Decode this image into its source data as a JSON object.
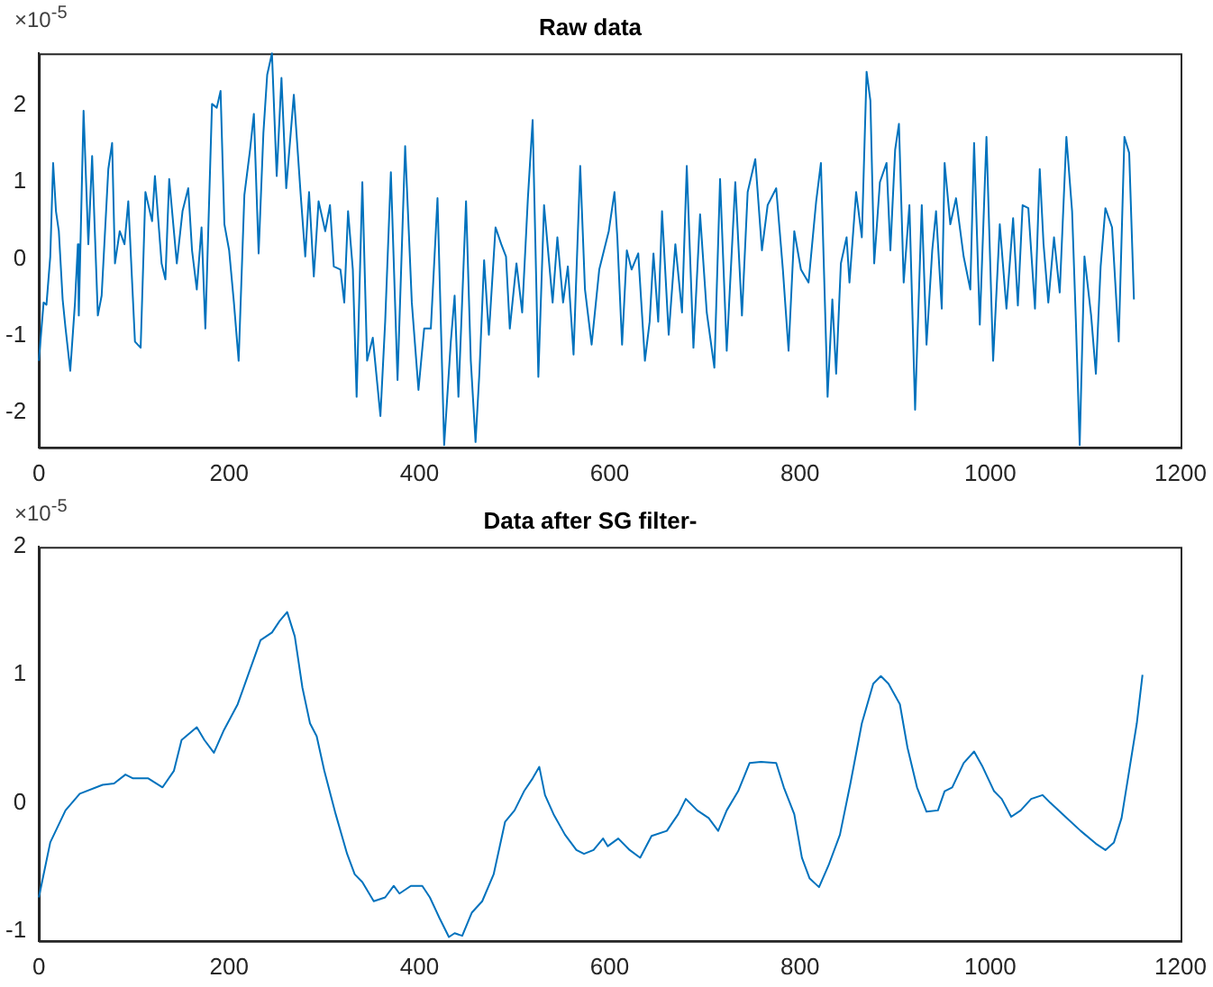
{
  "chart_data": [
    {
      "type": "line",
      "title": "Raw data",
      "annotations": [
        "×10$^{-5}$"
      ],
      "grid": false,
      "legend": false,
      "marker": "none",
      "line_style": "solid",
      "xlim": [
        0,
        1200
      ],
      "xticks": [
        0,
        200,
        400,
        600,
        800,
        1000,
        1200
      ],
      "ylim": [
        -2.46,
        2.68
      ],
      "yticks": [
        -2,
        -1,
        0,
        1,
        2
      ],
      "series": [
        {
          "color": "#0072bd",
          "x": [
            0,
            5,
            8,
            12,
            15,
            18,
            21,
            25,
            28,
            33,
            38,
            41,
            42,
            47,
            52,
            56,
            62,
            66,
            73,
            77,
            80,
            85,
            90,
            94,
            101,
            107,
            112,
            119,
            122,
            129,
            133,
            137,
            145,
            151,
            157,
            161,
            166,
            171,
            175,
            182,
            187,
            191,
            195,
            200,
            205,
            210,
            216,
            222,
            226,
            231,
            236,
            240,
            245,
            250,
            255,
            260,
            268,
            275,
            280,
            284,
            289,
            294,
            301,
            306,
            310,
            317,
            321,
            325,
            330,
            334,
            340,
            345,
            351,
            359,
            364,
            370,
            377,
            385,
            392,
            399,
            405,
            412,
            419,
            426,
            433,
            437,
            441,
            449,
            454,
            459,
            463,
            468,
            473,
            480,
            486,
            491,
            495,
            502,
            508,
            514,
            519,
            525,
            531,
            540,
            545,
            551,
            556,
            562,
            569,
            574,
            581,
            589,
            599,
            605,
            608,
            613,
            618,
            623,
            630,
            637,
            642,
            646,
            651,
            655,
            662,
            669,
            676,
            681,
            688,
            695,
            702,
            710,
            716,
            723,
            732,
            739,
            745,
            753,
            760,
            766,
            775,
            782,
            788,
            794,
            801,
            809,
            817,
            822,
            829,
            834,
            838,
            843,
            849,
            852,
            859,
            865,
            870,
            874,
            878,
            884,
            891,
            895,
            900,
            904,
            909,
            915,
            921,
            928,
            933,
            939,
            943,
            949,
            952,
            958,
            964,
            972,
            979,
            983,
            989,
            996,
            1003,
            1010,
            1017,
            1024,
            1029,
            1034,
            1040,
            1047,
            1052,
            1056,
            1061,
            1067,
            1073,
            1080,
            1086,
            1090,
            1094,
            1099,
            1106,
            1111,
            1116,
            1121,
            1128,
            1135,
            1141,
            1146,
            1151
          ],
          "values": [
            -1.33,
            -0.57,
            -0.6,
            0.03,
            1.25,
            0.62,
            0.36,
            -0.53,
            -0.9,
            -1.46,
            -0.57,
            0.19,
            -0.74,
            1.93,
            0.19,
            1.34,
            -0.74,
            -0.48,
            1.17,
            1.51,
            -0.06,
            0.36,
            0.19,
            0.75,
            -1.08,
            -1.16,
            0.87,
            0.49,
            1.08,
            -0.06,
            -0.27,
            1.04,
            -0.06,
            0.62,
            0.92,
            0.11,
            -0.4,
            0.41,
            -0.91,
            2.02,
            1.97,
            2.19,
            0.45,
            0.11,
            -0.57,
            -1.33,
            0.83,
            1.42,
            1.89,
            0.07,
            1.64,
            2.4,
            2.68,
            1.08,
            2.36,
            0.92,
            2.14,
            0.87,
            0.03,
            0.87,
            -0.23,
            0.75,
            0.36,
            0.7,
            -0.1,
            -0.14,
            -0.57,
            0.62,
            -0.14,
            -1.8,
            1.0,
            -1.33,
            -1.03,
            -2.05,
            -0.82,
            1.13,
            -1.58,
            1.47,
            -0.57,
            -1.71,
            -0.91,
            -0.91,
            0.79,
            -2.43,
            -1.08,
            -0.48,
            -1.8,
            0.75,
            -1.33,
            -2.39,
            -1.5,
            -0.02,
            -0.99,
            0.41,
            0.19,
            0.03,
            -0.91,
            -0.06,
            -0.7,
            0.79,
            1.81,
            -1.54,
            0.7,
            -0.57,
            0.28,
            -0.57,
            -0.1,
            -1.25,
            1.21,
            -0.4,
            -1.12,
            -0.14,
            0.36,
            0.87,
            0.28,
            -1.12,
            0.11,
            -0.14,
            0.07,
            -1.33,
            -0.82,
            0.07,
            -0.82,
            0.62,
            -0.99,
            0.19,
            -0.7,
            1.21,
            -1.16,
            0.58,
            -0.7,
            -1.42,
            1.04,
            -1.2,
            1.0,
            -0.74,
            0.87,
            1.3,
            0.11,
            0.7,
            0.92,
            -0.14,
            -1.2,
            0.36,
            -0.14,
            -0.31,
            0.75,
            1.25,
            -1.8,
            -0.53,
            -1.5,
            -0.06,
            0.28,
            -0.31,
            0.87,
            0.28,
            2.44,
            2.06,
            -0.06,
            1.0,
            1.25,
            0.11,
            1.42,
            1.76,
            -0.31,
            0.7,
            -1.97,
            0.7,
            -1.12,
            0.11,
            0.62,
            -0.65,
            1.25,
            0.45,
            0.79,
            0.03,
            -0.4,
            1.51,
            -0.86,
            1.59,
            -1.33,
            0.45,
            -0.65,
            0.53,
            -0.61,
            0.7,
            0.66,
            -0.65,
            1.17,
            0.19,
            -0.57,
            0.28,
            -0.44,
            1.59,
            0.62,
            -0.82,
            -2.43,
            0.03,
            -0.74,
            -1.5,
            -0.1,
            0.66,
            0.41,
            -1.08,
            1.59,
            1.38,
            -0.53
          ]
        }
      ]
    },
    {
      "type": "line",
      "title": "Data after SG filter-",
      "annotations": [
        "×10$^{-5}$"
      ],
      "grid": false,
      "legend": false,
      "marker": "none",
      "line_style": "solid",
      "xlim": [
        0,
        1200
      ],
      "xticks": [
        0,
        200,
        400,
        600,
        800,
        1000,
        1200
      ],
      "ylim": [
        -1.08,
        2
      ],
      "yticks": [
        -1,
        0,
        1,
        2
      ],
      "series": [
        {
          "color": "#0072bd",
          "x": [
            0,
            12,
            28,
            43,
            67,
            79,
            91,
            99,
            115,
            130,
            142,
            150,
            166,
            174,
            184,
            194,
            209,
            221,
            233,
            245,
            253,
            261,
            269,
            277,
            285,
            292,
            300,
            312,
            324,
            332,
            340,
            352,
            364,
            373,
            379,
            391,
            403,
            411,
            421,
            431,
            437,
            445,
            455,
            466,
            478,
            490,
            500,
            510,
            519,
            526,
            532,
            541,
            553,
            565,
            573,
            583,
            593,
            598,
            609,
            621,
            632,
            644,
            660,
            672,
            680,
            692,
            704,
            714,
            723,
            735,
            747,
            759,
            775,
            783,
            794,
            802,
            810,
            820,
            830,
            842,
            853,
            865,
            877,
            885,
            893,
            905,
            913,
            923,
            933,
            945,
            952,
            960,
            972,
            983,
            992,
            1004,
            1012,
            1022,
            1032,
            1043,
            1055,
            1063,
            1079,
            1095,
            1111,
            1121,
            1130,
            1138,
            1146,
            1154,
            1160
          ],
          "values": [
            -0.74,
            -0.31,
            -0.06,
            0.07,
            0.14,
            0.15,
            0.22,
            0.19,
            0.19,
            0.12,
            0.25,
            0.49,
            0.59,
            0.49,
            0.39,
            0.56,
            0.77,
            1.02,
            1.27,
            1.33,
            1.42,
            1.49,
            1.3,
            0.9,
            0.62,
            0.52,
            0.25,
            -0.09,
            -0.4,
            -0.56,
            -0.62,
            -0.77,
            -0.74,
            -0.65,
            -0.71,
            -0.65,
            -0.65,
            -0.74,
            -0.9,
            -1.05,
            -1.02,
            -1.04,
            -0.86,
            -0.77,
            -0.56,
            -0.15,
            -0.06,
            0.09,
            0.19,
            0.28,
            0.06,
            -0.09,
            -0.25,
            -0.37,
            -0.4,
            -0.37,
            -0.28,
            -0.34,
            -0.28,
            -0.37,
            -0.43,
            -0.26,
            -0.22,
            -0.09,
            0.03,
            -0.06,
            -0.12,
            -0.22,
            -0.06,
            0.09,
            0.31,
            0.32,
            0.31,
            0.12,
            -0.09,
            -0.43,
            -0.59,
            -0.66,
            -0.49,
            -0.25,
            0.15,
            0.62,
            0.93,
            0.99,
            0.93,
            0.77,
            0.43,
            0.12,
            -0.07,
            -0.06,
            0.09,
            0.12,
            0.31,
            0.4,
            0.28,
            0.09,
            0.03,
            -0.11,
            -0.06,
            0.03,
            0.06,
            0,
            -0.11,
            -0.22,
            -0.32,
            -0.37,
            -0.31,
            -0.12,
            0.25,
            0.62,
            1.0
          ]
        }
      ]
    }
  ]
}
